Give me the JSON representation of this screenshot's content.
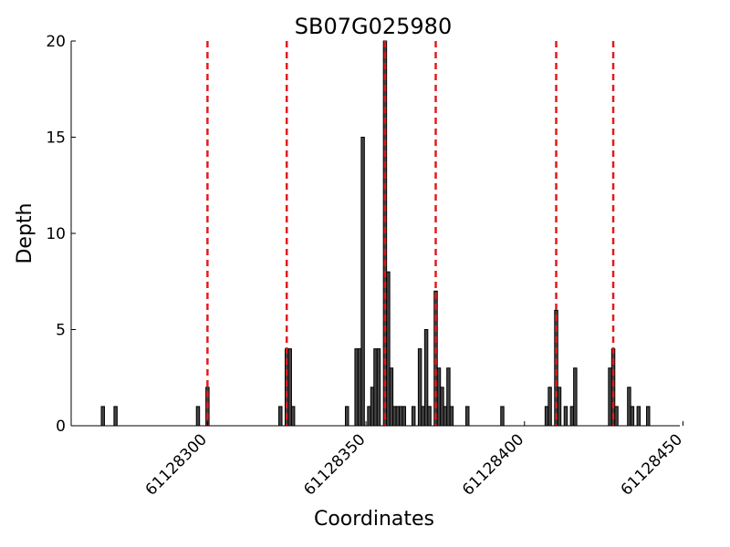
{
  "chart_data": {
    "type": "bar",
    "title": "SB07G025980",
    "x_label": "Coordinates",
    "y_label": "Depth",
    "x": [
      61128267,
      61128271,
      61128297,
      61128300,
      61128323,
      61128325,
      61128326,
      61128327,
      61128344,
      61128347,
      61128348,
      61128349,
      61128351,
      61128352,
      61128353,
      61128354,
      61128356,
      61128357,
      61128358,
      61128359,
      61128360,
      61128361,
      61128362,
      61128365,
      61128367,
      61128368,
      61128369,
      61128370,
      61128372,
      61128373,
      61128374,
      61128375,
      61128376,
      61128377,
      61128382,
      61128393,
      61128407,
      61128408,
      61128410,
      61128411,
      61128413,
      61128415,
      61128416,
      61128427,
      61128428,
      61128429,
      61128433,
      61128434,
      61128436,
      61128439
    ],
    "values": [
      1,
      1,
      1,
      2,
      1,
      4,
      4,
      1,
      1,
      4,
      4,
      15,
      1,
      2,
      4,
      4,
      20,
      8,
      3,
      1,
      1,
      1,
      1,
      1,
      4,
      1,
      5,
      1,
      7,
      3,
      2,
      1,
      3,
      1,
      1,
      1,
      1,
      2,
      6,
      2,
      1,
      1,
      3,
      3,
      4,
      1,
      2,
      1,
      1,
      1
    ],
    "color": "#444444",
    "vlines": [
      61128300,
      61128325,
      61128356,
      61128372,
      61128410,
      61128428
    ],
    "vline_color": "#e41a1c",
    "xlim": [
      61128257,
      61128449
    ],
    "ylim": [
      0,
      20
    ],
    "xticks": [
      61128300,
      61128350,
      61128400,
      61128450
    ],
    "yticks": [
      0,
      5,
      10,
      15,
      20
    ]
  }
}
